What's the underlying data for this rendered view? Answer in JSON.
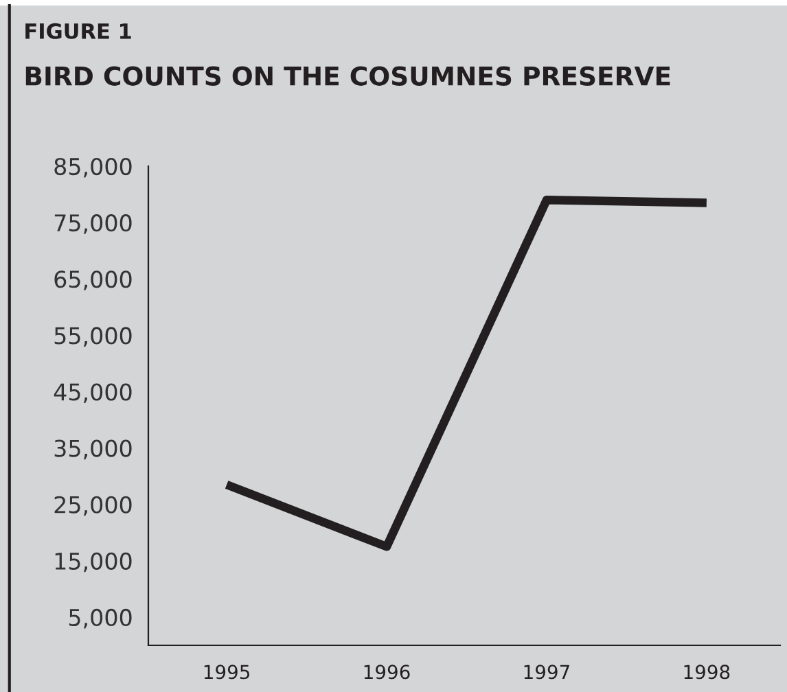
{
  "chart_data": {
    "type": "line",
    "title": "BIRD COUNTS ON THE COSUMNES PRESERVE",
    "annotations": [
      "FIGURE 1"
    ],
    "categories": [
      "1995",
      "1996",
      "1997",
      "1998"
    ],
    "series": [
      {
        "color": "#231f20",
        "values": [
          28500,
          17500,
          79000,
          78500
        ]
      }
    ],
    "ylim": [
      0,
      85000
    ],
    "yticks": [
      {
        "value": 5000,
        "label": "5,000"
      },
      {
        "value": 15000,
        "label": "15,000"
      },
      {
        "value": 25000,
        "label": "25,000"
      },
      {
        "value": 35000,
        "label": "35,000"
      },
      {
        "value": 45000,
        "label": "45,000"
      },
      {
        "value": 55000,
        "label": "55,000"
      },
      {
        "value": 65000,
        "label": "65,000"
      },
      {
        "value": 75000,
        "label": "75,000"
      },
      {
        "value": 85000,
        "label": "85,000"
      }
    ],
    "grid": false,
    "marker": "none",
    "line_style": "solid"
  }
}
